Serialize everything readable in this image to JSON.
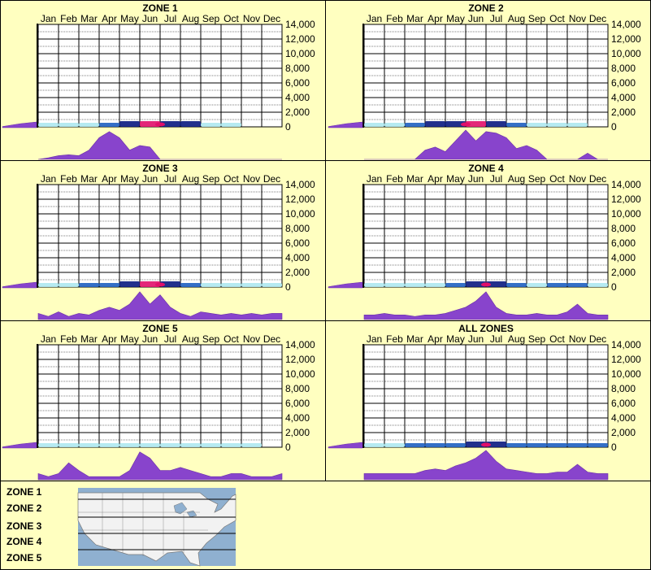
{
  "months": [
    "Jan",
    "Feb",
    "Mar",
    "Apr",
    "May",
    "Jun",
    "Jul",
    "Aug",
    "Sep",
    "Oct",
    "Nov",
    "Dec"
  ],
  "y_ticks": [
    "14,000",
    "12,000",
    "10,000",
    "8,000",
    "6,000",
    "4,000",
    "2,000",
    "0"
  ],
  "colors": {
    "background": "#ffffc0",
    "density": "#8844cc",
    "density_stroke": "#6a2fa8",
    "heat_low": "#aee8f0",
    "heat_mid": "#1e5fc0",
    "heat_high": "#0a1a80",
    "heat_peak": "#e0106a"
  },
  "chart_data": [
    {
      "type": "heatmap",
      "title": "ZONE 1",
      "xlabel": "",
      "ylabel": "",
      "categories": [
        "Jan",
        "Feb",
        "Mar",
        "Apr",
        "May",
        "Jun",
        "Jul",
        "Aug",
        "Sep",
        "Oct",
        "Nov",
        "Dec"
      ],
      "ylim": [
        0,
        14000
      ],
      "heat_intensity": [
        0.05,
        0.1,
        0.2,
        0.35,
        0.7,
        0.9,
        0.95,
        0.8,
        0.4,
        0.05,
        0.0,
        0.0,
        0.0
      ],
      "density": [
        0.0,
        0.05,
        0.12,
        0.15,
        0.12,
        0.3,
        0.7,
        0.9,
        0.7,
        0.3,
        0.45,
        0.4,
        0.0,
        0.0,
        0.0,
        0.0,
        0.0,
        0.0,
        0.0,
        0.0,
        0.0,
        0.0,
        0.0,
        0.0,
        0.0
      ],
      "elevation_density": [
        0.1,
        0.35,
        0.5
      ]
    },
    {
      "type": "heatmap",
      "title": "ZONE 2",
      "xlabel": "",
      "ylabel": "",
      "categories": [
        "Jan",
        "Feb",
        "Mar",
        "Apr",
        "May",
        "Jun",
        "Jul",
        "Aug",
        "Sep",
        "Oct",
        "Nov",
        "Dec"
      ],
      "ylim": [
        0,
        14000
      ],
      "heat_intensity": [
        0.0,
        0.05,
        0.2,
        0.5,
        0.8,
        0.95,
        0.9,
        0.8,
        0.3,
        0.1,
        0.05,
        0.0,
        0.0
      ],
      "density": [
        0.0,
        0.0,
        0.0,
        0.0,
        0.0,
        0.0,
        0.3,
        0.4,
        0.25,
        0.6,
        0.95,
        0.6,
        0.9,
        0.85,
        0.7,
        0.35,
        0.45,
        0.3,
        0.0,
        0.0,
        0.0,
        0.0,
        0.2,
        0.0,
        0.0
      ],
      "elevation_density": [
        0.1,
        0.35,
        0.5
      ]
    },
    {
      "type": "heatmap",
      "title": "ZONE 3",
      "xlabel": "",
      "ylabel": "",
      "categories": [
        "Jan",
        "Feb",
        "Mar",
        "Apr",
        "May",
        "Jun",
        "Jul",
        "Aug",
        "Sep",
        "Oct",
        "Nov",
        "Dec"
      ],
      "ylim": [
        0,
        14000
      ],
      "heat_intensity": [
        0.3,
        0.15,
        0.3,
        0.35,
        0.7,
        0.9,
        1.0,
        0.7,
        0.3,
        0.1,
        0.1,
        0.1,
        0.15
      ],
      "density": [
        0.2,
        0.1,
        0.25,
        0.1,
        0.2,
        0.15,
        0.3,
        0.4,
        0.3,
        0.5,
        0.9,
        0.5,
        0.8,
        0.4,
        0.2,
        0.1,
        0.25,
        0.2,
        0.15,
        0.2,
        0.15,
        0.2,
        0.15,
        0.2,
        0.2
      ],
      "elevation_density": [
        0.1,
        0.35,
        0.5
      ]
    },
    {
      "type": "heatmap",
      "title": "ZONE 4",
      "xlabel": "",
      "ylabel": "",
      "categories": [
        "Jan",
        "Feb",
        "Mar",
        "Apr",
        "May",
        "Jun",
        "Jul",
        "Aug",
        "Sep",
        "Oct",
        "Nov",
        "Dec"
      ],
      "ylim": [
        0,
        14000
      ],
      "heat_intensity": [
        0.35,
        0.2,
        0.2,
        0.2,
        0.3,
        0.4,
        1.0,
        0.4,
        0.2,
        0.2,
        0.6,
        0.2,
        0.2
      ],
      "density": [
        0.15,
        0.15,
        0.2,
        0.15,
        0.15,
        0.1,
        0.15,
        0.15,
        0.2,
        0.3,
        0.4,
        0.6,
        0.9,
        0.4,
        0.2,
        0.15,
        0.15,
        0.2,
        0.15,
        0.15,
        0.25,
        0.5,
        0.2,
        0.15,
        0.15
      ],
      "elevation_density": [
        0.1,
        0.35,
        0.5
      ]
    },
    {
      "type": "heatmap",
      "title": "ZONE 5",
      "xlabel": "",
      "ylabel": "",
      "categories": [
        "Jan",
        "Feb",
        "Mar",
        "Apr",
        "May",
        "Jun",
        "Jul",
        "Aug",
        "Sep",
        "Oct",
        "Nov",
        "Dec"
      ],
      "ylim": [
        0,
        14000
      ],
      "heat_intensity": [
        0.0,
        0.1,
        0.1,
        0.05,
        0.05,
        0.1,
        0.3,
        0.2,
        0.1,
        0.05,
        0.05,
        0.0,
        0.0
      ],
      "density": [
        0.2,
        0.1,
        0.2,
        0.55,
        0.3,
        0.1,
        0.1,
        0.1,
        0.1,
        0.3,
        0.9,
        0.7,
        0.3,
        0.3,
        0.4,
        0.3,
        0.2,
        0.1,
        0.1,
        0.2,
        0.2,
        0.1,
        0.1,
        0.1,
        0.2
      ],
      "elevation_density": [
        0.1,
        0.35,
        0.5
      ]
    },
    {
      "type": "heatmap",
      "title": "ALL ZONES",
      "xlabel": "",
      "ylabel": "",
      "categories": [
        "Jan",
        "Feb",
        "Mar",
        "Apr",
        "May",
        "Jun",
        "Jul",
        "Aug",
        "Sep",
        "Oct",
        "Nov",
        "Dec"
      ],
      "ylim": [
        0,
        14000
      ],
      "heat_intensity": [
        0.3,
        0.25,
        0.3,
        0.3,
        0.5,
        0.6,
        1.0,
        0.6,
        0.35,
        0.3,
        0.7,
        0.3,
        0.3
      ],
      "density": [
        0.2,
        0.2,
        0.2,
        0.2,
        0.2,
        0.2,
        0.3,
        0.35,
        0.3,
        0.45,
        0.55,
        0.7,
        0.95,
        0.6,
        0.35,
        0.3,
        0.25,
        0.2,
        0.2,
        0.25,
        0.25,
        0.5,
        0.25,
        0.2,
        0.2
      ],
      "elevation_density": [
        0.1,
        0.35,
        0.5
      ]
    }
  ],
  "legend": {
    "zones": [
      "ZONE 1",
      "ZONE 2",
      "ZONE 3",
      "ZONE 4",
      "ZONE 5"
    ]
  },
  "map": {
    "water": "#8fb0d0",
    "land": "#f2f2f2",
    "border": "#7a7a7a",
    "zone_line": "#000000"
  }
}
